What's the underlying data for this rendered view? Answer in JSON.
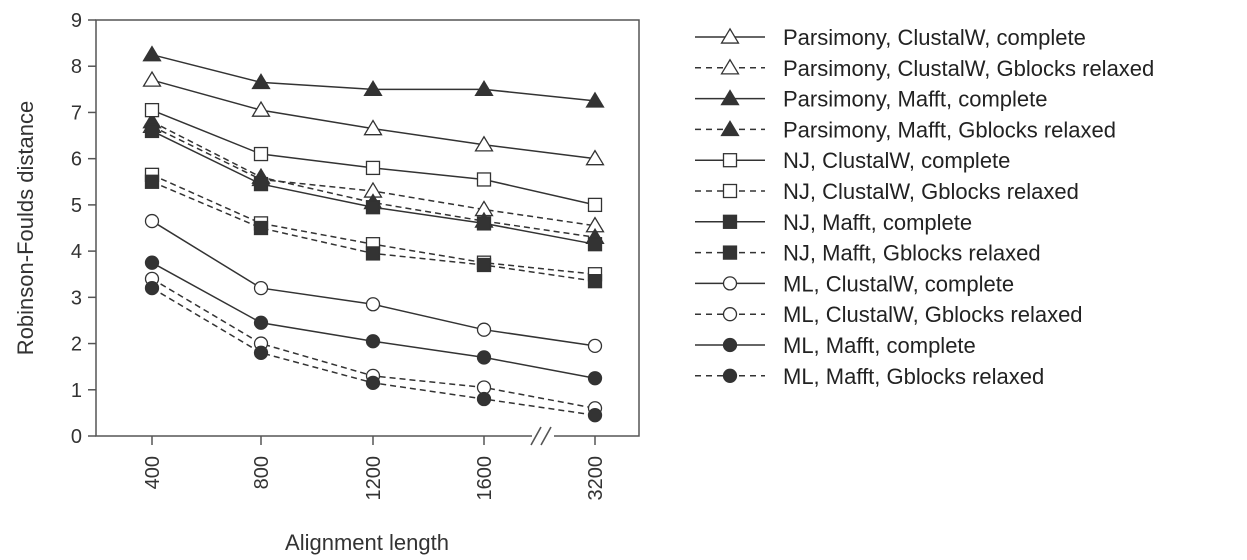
{
  "chart_data": {
    "type": "line",
    "title": "",
    "xlabel": "Alignment length",
    "ylabel": "Robinson-Foulds distance",
    "categories": [
      "400",
      "800",
      "1200",
      "1600",
      "3200"
    ],
    "ylim": [
      0,
      9
    ],
    "yticks": [
      "0",
      "1",
      "2",
      "3",
      "4",
      "5",
      "6",
      "7",
      "8",
      "9"
    ],
    "axis_break": "//",
    "grid": false,
    "legend_position": "right",
    "series": [
      {
        "name": "Parsimony, ClustalW, complete",
        "marker": "triangle-open",
        "dashed": false,
        "values": [
          7.7,
          7.05,
          6.65,
          6.3,
          6.0
        ]
      },
      {
        "name": "Parsimony, ClustalW, Gblocks relaxed",
        "marker": "triangle-open",
        "dashed": true,
        "values": [
          6.7,
          5.55,
          5.3,
          4.9,
          4.55
        ]
      },
      {
        "name": "Parsimony, Mafft, complete",
        "marker": "triangle-filled",
        "dashed": false,
        "values": [
          8.25,
          7.65,
          7.5,
          7.5,
          7.25
        ]
      },
      {
        "name": "Parsimony, Mafft, Gblocks relaxed",
        "marker": "triangle-filled",
        "dashed": true,
        "values": [
          6.8,
          5.6,
          5.05,
          4.65,
          4.3
        ]
      },
      {
        "name": "NJ, ClustalW, complete",
        "marker": "square-open",
        "dashed": false,
        "values": [
          7.05,
          6.1,
          5.8,
          5.55,
          5.0
        ]
      },
      {
        "name": "NJ, ClustalW, Gblocks relaxed",
        "marker": "square-open",
        "dashed": true,
        "values": [
          5.65,
          4.6,
          4.15,
          3.75,
          3.5
        ]
      },
      {
        "name": "NJ, Mafft, complete",
        "marker": "square-filled",
        "dashed": false,
        "values": [
          6.6,
          5.45,
          4.95,
          4.6,
          4.15
        ]
      },
      {
        "name": "NJ, Mafft, Gblocks relaxed",
        "marker": "square-filled",
        "dashed": true,
        "values": [
          5.5,
          4.5,
          3.95,
          3.7,
          3.35
        ]
      },
      {
        "name": "ML, ClustalW, complete",
        "marker": "circle-open",
        "dashed": false,
        "values": [
          4.65,
          3.2,
          2.85,
          2.3,
          1.95
        ]
      },
      {
        "name": "ML, ClustalW, Gblocks relaxed",
        "marker": "circle-open",
        "dashed": true,
        "values": [
          3.4,
          2.0,
          1.3,
          1.05,
          0.6
        ]
      },
      {
        "name": "ML, Mafft, complete",
        "marker": "circle-filled",
        "dashed": false,
        "values": [
          3.75,
          2.45,
          2.05,
          1.7,
          1.25
        ]
      },
      {
        "name": "ML, Mafft, Gblocks relaxed",
        "marker": "circle-filled",
        "dashed": true,
        "values": [
          3.2,
          1.8,
          1.15,
          0.8,
          0.45
        ]
      }
    ]
  },
  "colors": {
    "line": "#333333",
    "axis": "#555555",
    "text": "#333333",
    "marker_fill": "#333333",
    "marker_open": "#ffffff"
  }
}
